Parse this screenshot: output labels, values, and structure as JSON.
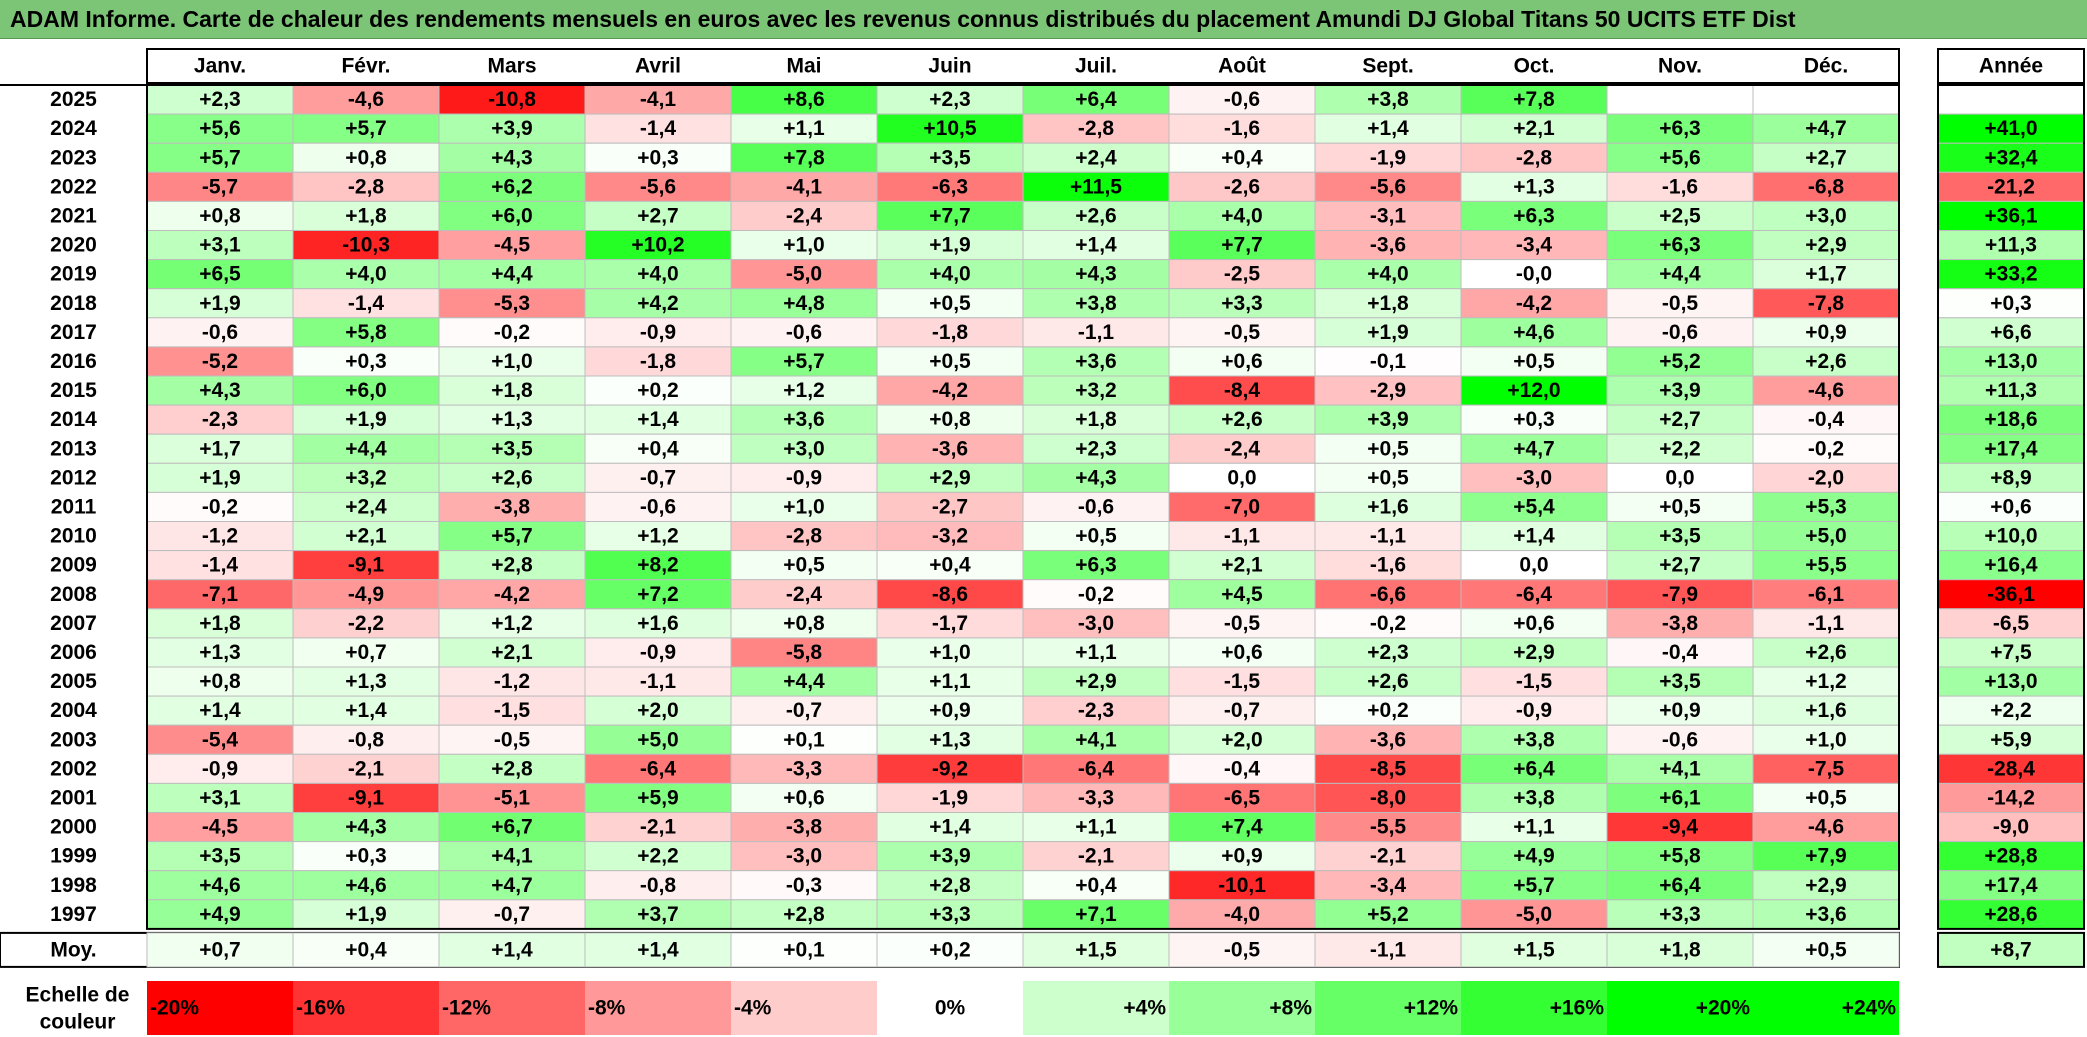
{
  "title": "ADAM Informe. Carte de chaleur des rendements mensuels en euros avec les revenus connus distribués du placement Amundi DJ Global Titans 50 UCITS ETF Dist",
  "chart_data": {
    "type": "heatmap",
    "title": "ADAM Informe. Carte de chaleur des rendements mensuels en euros avec les revenus connus distribués du placement Amundi DJ Global Titans 50 UCITS ETF Dist",
    "columns": [
      "Janv.",
      "Févr.",
      "Mars",
      "Avril",
      "Mai",
      "Juin",
      "Juil.",
      "Août",
      "Sept.",
      "Oct.",
      "Nov.",
      "Déc."
    ],
    "year_header": "Année",
    "rows": [
      {
        "year": "2025",
        "values": [
          "+2,3",
          "-4,6",
          "-10,8",
          "-4,1",
          "+8,6",
          "+2,3",
          "+6,4",
          "-0,6",
          "+3,8",
          "+7,8",
          "",
          ""
        ],
        "annual": ""
      },
      {
        "year": "2024",
        "values": [
          "+5,6",
          "+5,7",
          "+3,9",
          "-1,4",
          "+1,1",
          "+10,5",
          "-2,8",
          "-1,6",
          "+1,4",
          "+2,1",
          "+6,3",
          "+4,7"
        ],
        "annual": "+41,0"
      },
      {
        "year": "2023",
        "values": [
          "+5,7",
          "+0,8",
          "+4,3",
          "+0,3",
          "+7,8",
          "+3,5",
          "+2,4",
          "+0,4",
          "-1,9",
          "-2,8",
          "+5,6",
          "+2,7"
        ],
        "annual": "+32,4"
      },
      {
        "year": "2022",
        "values": [
          "-5,7",
          "-2,8",
          "+6,2",
          "-5,6",
          "-4,1",
          "-6,3",
          "+11,5",
          "-2,6",
          "-5,6",
          "+1,3",
          "-1,6",
          "-6,8"
        ],
        "annual": "-21,2"
      },
      {
        "year": "2021",
        "values": [
          "+0,8",
          "+1,8",
          "+6,0",
          "+2,7",
          "-2,4",
          "+7,7",
          "+2,6",
          "+4,0",
          "-3,1",
          "+6,3",
          "+2,5",
          "+3,0"
        ],
        "annual": "+36,1"
      },
      {
        "year": "2020",
        "values": [
          "+3,1",
          "-10,3",
          "-4,5",
          "+10,2",
          "+1,0",
          "+1,9",
          "+1,4",
          "+7,7",
          "-3,6",
          "-3,4",
          "+6,3",
          "+2,9"
        ],
        "annual": "+11,3"
      },
      {
        "year": "2019",
        "values": [
          "+6,5",
          "+4,0",
          "+4,4",
          "+4,0",
          "-5,0",
          "+4,0",
          "+4,3",
          "-2,5",
          "+4,0",
          "-0,0",
          "+4,4",
          "+1,7"
        ],
        "annual": "+33,2"
      },
      {
        "year": "2018",
        "values": [
          "+1,9",
          "-1,4",
          "-5,3",
          "+4,2",
          "+4,8",
          "+0,5",
          "+3,8",
          "+3,3",
          "+1,8",
          "-4,2",
          "-0,5",
          "-7,8"
        ],
        "annual": "+0,3"
      },
      {
        "year": "2017",
        "values": [
          "-0,6",
          "+5,8",
          "-0,2",
          "-0,9",
          "-0,6",
          "-1,8",
          "-1,1",
          "-0,5",
          "+1,9",
          "+4,6",
          "-0,6",
          "+0,9"
        ],
        "annual": "+6,6"
      },
      {
        "year": "2016",
        "values": [
          "-5,2",
          "+0,3",
          "+1,0",
          "-1,8",
          "+5,7",
          "+0,5",
          "+3,6",
          "+0,6",
          "-0,1",
          "+0,5",
          "+5,2",
          "+2,6"
        ],
        "annual": "+13,0"
      },
      {
        "year": "2015",
        "values": [
          "+4,3",
          "+6,0",
          "+1,8",
          "+0,2",
          "+1,2",
          "-4,2",
          "+3,2",
          "-8,4",
          "-2,9",
          "+12,0",
          "+3,9",
          "-4,6"
        ],
        "annual": "+11,3"
      },
      {
        "year": "2014",
        "values": [
          "-2,3",
          "+1,9",
          "+1,3",
          "+1,4",
          "+3,6",
          "+0,8",
          "+1,8",
          "+2,6",
          "+3,9",
          "+0,3",
          "+2,7",
          "-0,4"
        ],
        "annual": "+18,6"
      },
      {
        "year": "2013",
        "values": [
          "+1,7",
          "+4,4",
          "+3,5",
          "+0,4",
          "+3,0",
          "-3,6",
          "+2,3",
          "-2,4",
          "+0,5",
          "+4,7",
          "+2,2",
          "-0,2"
        ],
        "annual": "+17,4"
      },
      {
        "year": "2012",
        "values": [
          "+1,9",
          "+3,2",
          "+2,6",
          "-0,7",
          "-0,9",
          "+2,9",
          "+4,3",
          "0,0",
          "+0,5",
          "-3,0",
          "0,0",
          "-2,0"
        ],
        "annual": "+8,9"
      },
      {
        "year": "2011",
        "values": [
          "-0,2",
          "+2,4",
          "-3,8",
          "-0,6",
          "+1,0",
          "-2,7",
          "-0,6",
          "-7,0",
          "+1,6",
          "+5,4",
          "+0,5",
          "+5,3"
        ],
        "annual": "+0,6"
      },
      {
        "year": "2010",
        "values": [
          "-1,2",
          "+2,1",
          "+5,7",
          "+1,2",
          "-2,8",
          "-3,2",
          "+0,5",
          "-1,1",
          "-1,1",
          "+1,4",
          "+3,5",
          "+5,0"
        ],
        "annual": "+10,0"
      },
      {
        "year": "2009",
        "values": [
          "-1,4",
          "-9,1",
          "+2,8",
          "+8,2",
          "+0,5",
          "+0,4",
          "+6,3",
          "+2,1",
          "-1,6",
          "0,0",
          "+2,7",
          "+5,5"
        ],
        "annual": "+16,4"
      },
      {
        "year": "2008",
        "values": [
          "-7,1",
          "-4,9",
          "-4,2",
          "+7,2",
          "-2,4",
          "-8,6",
          "-0,2",
          "+4,5",
          "-6,6",
          "-6,4",
          "-7,9",
          "-6,1"
        ],
        "annual": "-36,1"
      },
      {
        "year": "2007",
        "values": [
          "+1,8",
          "-2,2",
          "+1,2",
          "+1,6",
          "+0,8",
          "-1,7",
          "-3,0",
          "-0,5",
          "-0,2",
          "+0,6",
          "-3,8",
          "-1,1"
        ],
        "annual": "-6,5"
      },
      {
        "year": "2006",
        "values": [
          "+1,3",
          "+0,7",
          "+2,1",
          "-0,9",
          "-5,8",
          "+1,0",
          "+1,1",
          "+0,6",
          "+2,3",
          "+2,9",
          "-0,4",
          "+2,6"
        ],
        "annual": "+7,5"
      },
      {
        "year": "2005",
        "values": [
          "+0,8",
          "+1,3",
          "-1,2",
          "-1,1",
          "+4,4",
          "+1,1",
          "+2,9",
          "-1,5",
          "+2,6",
          "-1,5",
          "+3,5",
          "+1,2"
        ],
        "annual": "+13,0"
      },
      {
        "year": "2004",
        "values": [
          "+1,4",
          "+1,4",
          "-1,5",
          "+2,0",
          "-0,7",
          "+0,9",
          "-2,3",
          "-0,7",
          "+0,2",
          "-0,9",
          "+0,9",
          "+1,6"
        ],
        "annual": "+2,2"
      },
      {
        "year": "2003",
        "values": [
          "-5,4",
          "-0,8",
          "-0,5",
          "+5,0",
          "+0,1",
          "+1,3",
          "+4,1",
          "+2,0",
          "-3,6",
          "+3,8",
          "-0,6",
          "+1,0"
        ],
        "annual": "+5,9"
      },
      {
        "year": "2002",
        "values": [
          "-0,9",
          "-2,1",
          "+2,8",
          "-6,4",
          "-3,3",
          "-9,2",
          "-6,4",
          "-0,4",
          "-8,5",
          "+6,4",
          "+4,1",
          "-7,5"
        ],
        "annual": "-28,4"
      },
      {
        "year": "2001",
        "values": [
          "+3,1",
          "-9,1",
          "-5,1",
          "+5,9",
          "+0,6",
          "-1,9",
          "-3,3",
          "-6,5",
          "-8,0",
          "+3,8",
          "+6,1",
          "+0,5"
        ],
        "annual": "-14,2"
      },
      {
        "year": "2000",
        "values": [
          "-4,5",
          "+4,3",
          "+6,7",
          "-2,1",
          "-3,8",
          "+1,4",
          "+1,1",
          "+7,4",
          "-5,5",
          "+1,1",
          "-9,4",
          "-4,6"
        ],
        "annual": "-9,0"
      },
      {
        "year": "1999",
        "values": [
          "+3,5",
          "+0,3",
          "+4,1",
          "+2,2",
          "-3,0",
          "+3,9",
          "-2,1",
          "+0,9",
          "-2,1",
          "+4,9",
          "+5,8",
          "+7,9"
        ],
        "annual": "+28,8"
      },
      {
        "year": "1998",
        "values": [
          "+4,6",
          "+4,6",
          "+4,7",
          "-0,8",
          "-0,3",
          "+2,8",
          "+0,4",
          "-10,1",
          "-3,4",
          "+5,7",
          "+6,4",
          "+2,9"
        ],
        "annual": "+17,4"
      },
      {
        "year": "1997",
        "values": [
          "+4,9",
          "+1,9",
          "-0,7",
          "+3,7",
          "+2,8",
          "+3,3",
          "+7,1",
          "-4,0",
          "+5,2",
          "-5,0",
          "+3,3",
          "+3,6"
        ],
        "annual": "+28,6"
      }
    ],
    "average": {
      "label": "Moy.",
      "values": [
        "+0,7",
        "+0,4",
        "+1,4",
        "+1,4",
        "+0,1",
        "+0,2",
        "+1,5",
        "-0,5",
        "-1,1",
        "+1,5",
        "+1,8",
        "+0,5"
      ],
      "annual": "+8,7"
    },
    "scale": {
      "label_line1": "Echelle de",
      "label_line2": "couleur",
      "steps": [
        {
          "label": "-20%",
          "value": -20
        },
        {
          "label": "-16%",
          "value": -16
        },
        {
          "label": "-12%",
          "value": -12
        },
        {
          "label": "-8%",
          "value": -8
        },
        {
          "label": "-4%",
          "value": -4
        },
        {
          "label": "0%",
          "value": 0
        },
        {
          "label": "+4%",
          "value": 4
        },
        {
          "label": "+8%",
          "value": 8
        },
        {
          "label": "+12%",
          "value": 12
        },
        {
          "label": "+16%",
          "value": 16
        },
        {
          "label": "+20%",
          "value": 20
        },
        {
          "label": "+24%",
          "value": 24
        }
      ]
    },
    "colors": {
      "negative_max": "#ff0000",
      "neutral": "#ffffff",
      "positive_max": "#00ff00",
      "title_background": "#7cc576"
    }
  }
}
